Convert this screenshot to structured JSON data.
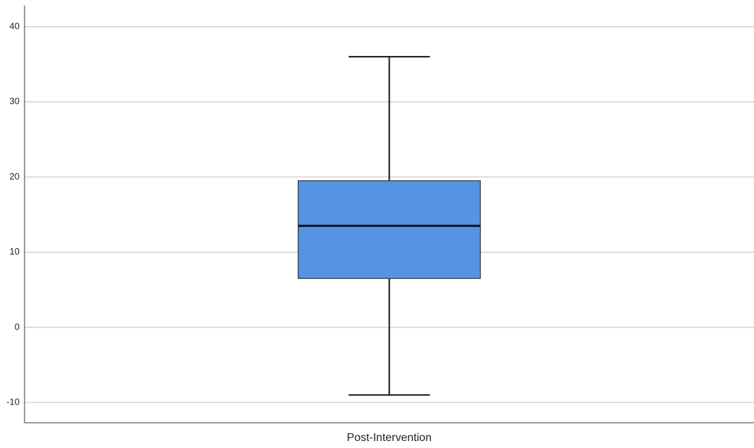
{
  "chart_data": {
    "type": "box",
    "categories": [
      "Post-Intervention"
    ],
    "stats": {
      "min": -9,
      "q1": 6.5,
      "median": 13.5,
      "q3": 19.5,
      "max": 36
    },
    "color": "#5593e5",
    "ylim": [
      -12.7,
      42.8
    ],
    "yticks": [
      -10,
      0,
      10,
      20,
      30,
      40
    ],
    "grid": true
  }
}
